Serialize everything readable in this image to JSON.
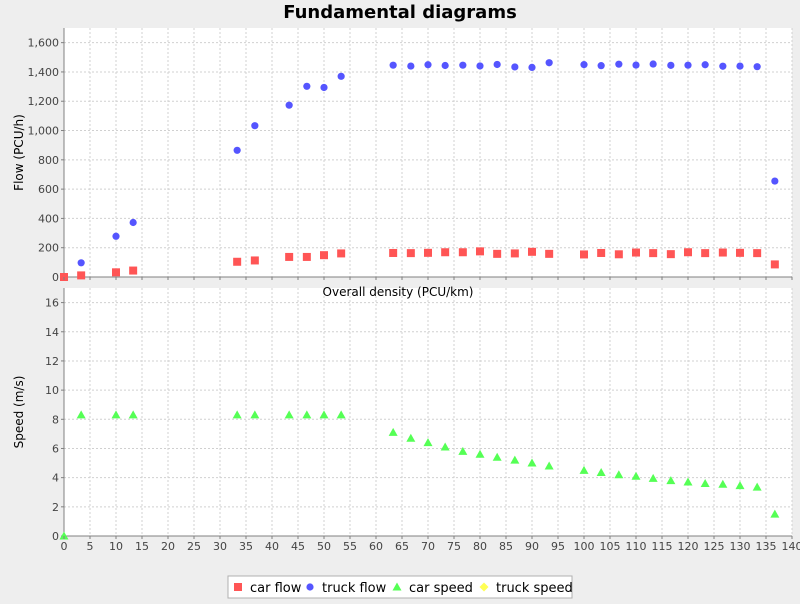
{
  "title": "Fundamental diagrams",
  "chart_data": {
    "type": "scatter",
    "title": "Fundamental diagrams",
    "xlabel": "Overall density (PCU/km)",
    "xlim": [
      0,
      140
    ],
    "xticks": [
      0,
      5,
      10,
      15,
      20,
      25,
      30,
      35,
      40,
      45,
      50,
      55,
      60,
      65,
      70,
      75,
      80,
      85,
      90,
      95,
      100,
      105,
      110,
      115,
      120,
      125,
      130,
      135,
      140
    ],
    "grid": true,
    "legend_position": "bottom",
    "subplots": [
      {
        "name": "flow",
        "ylabel": "Flow (PCU/h)",
        "ylim": [
          0,
          1700
        ],
        "yticks": [
          0,
          200,
          400,
          600,
          800,
          1000,
          1200,
          1400,
          1600
        ],
        "ytick_labels": [
          "0",
          "200",
          "400",
          "600",
          "800",
          "1,000",
          "1,200",
          "1,400",
          "1,600"
        ],
        "series": [
          {
            "name": "car flow",
            "marker": "square",
            "color": "#ff5555",
            "points": [
              [
                0,
                0
              ],
              [
                3.3,
                11
              ],
              [
                10,
                32
              ],
              [
                13.3,
                44
              ],
              [
                33.3,
                104
              ],
              [
                36.7,
                113
              ],
              [
                43.3,
                137
              ],
              [
                46.7,
                137
              ],
              [
                50,
                149
              ],
              [
                53.3,
                161
              ],
              [
                63.3,
                164
              ],
              [
                66.7,
                163
              ],
              [
                70,
                165
              ],
              [
                73.3,
                169
              ],
              [
                76.7,
                169
              ],
              [
                80,
                175
              ],
              [
                83.3,
                158
              ],
              [
                86.7,
                161
              ],
              [
                90,
                172
              ],
              [
                93.3,
                158
              ],
              [
                100,
                154
              ],
              [
                103.3,
                164
              ],
              [
                106.7,
                155
              ],
              [
                110,
                167
              ],
              [
                113.3,
                163
              ],
              [
                116.7,
                156
              ],
              [
                120,
                169
              ],
              [
                123.3,
                163
              ],
              [
                126.7,
                167
              ],
              [
                130,
                165
              ],
              [
                133.3,
                163
              ],
              [
                136.7,
                86
              ]
            ]
          },
          {
            "name": "truck flow",
            "marker": "circle",
            "color": "#5555ff",
            "points": [
              [
                3.3,
                97
              ],
              [
                10,
                278
              ],
              [
                13.3,
                372
              ],
              [
                33.3,
                865
              ],
              [
                36.7,
                1033
              ],
              [
                43.3,
                1173
              ],
              [
                46.7,
                1302
              ],
              [
                50,
                1294
              ],
              [
                53.3,
                1370
              ],
              [
                63.3,
                1446
              ],
              [
                66.7,
                1440
              ],
              [
                70,
                1449
              ],
              [
                73.3,
                1444
              ],
              [
                76.7,
                1446
              ],
              [
                80,
                1441
              ],
              [
                83.3,
                1451
              ],
              [
                86.7,
                1434
              ],
              [
                90,
                1431
              ],
              [
                93.3,
                1463
              ],
              [
                100,
                1450
              ],
              [
                103.3,
                1443
              ],
              [
                106.7,
                1453
              ],
              [
                110,
                1447
              ],
              [
                113.3,
                1454
              ],
              [
                116.7,
                1445
              ],
              [
                120,
                1446
              ],
              [
                123.3,
                1449
              ],
              [
                126.7,
                1439
              ],
              [
                130,
                1440
              ],
              [
                133.3,
                1436
              ],
              [
                136.7,
                655
              ]
            ]
          }
        ]
      },
      {
        "name": "speed",
        "ylabel": "Speed (m/s)",
        "ylim": [
          0,
          17
        ],
        "yticks": [
          0,
          2,
          4,
          6,
          8,
          10,
          12,
          14,
          16
        ],
        "ytick_labels": [
          "0",
          "2",
          "4",
          "6",
          "8",
          "10",
          "12",
          "14",
          "16"
        ],
        "series": [
          {
            "name": "car speed",
            "marker": "triangle",
            "color": "#55ff55",
            "points": [
              [
                0,
                0
              ],
              [
                3.3,
                8.3
              ],
              [
                10,
                8.3
              ],
              [
                13.3,
                8.3
              ],
              [
                33.3,
                8.3
              ],
              [
                36.7,
                8.3
              ],
              [
                43.3,
                8.3
              ],
              [
                46.7,
                8.3
              ],
              [
                50,
                8.3
              ],
              [
                53.3,
                8.3
              ],
              [
                63.3,
                7.1
              ],
              [
                66.7,
                6.7
              ],
              [
                70,
                6.4
              ],
              [
                73.3,
                6.1
              ],
              [
                76.7,
                5.8
              ],
              [
                80,
                5.6
              ],
              [
                83.3,
                5.4
              ],
              [
                86.7,
                5.2
              ],
              [
                90,
                5.0
              ],
              [
                93.3,
                4.8
              ],
              [
                100,
                4.5
              ],
              [
                103.3,
                4.35
              ],
              [
                106.7,
                4.2
              ],
              [
                110,
                4.1
              ],
              [
                113.3,
                3.95
              ],
              [
                116.7,
                3.8
              ],
              [
                120,
                3.7
              ],
              [
                123.3,
                3.6
              ],
              [
                126.7,
                3.55
              ],
              [
                130,
                3.45
              ],
              [
                133.3,
                3.35
              ],
              [
                136.7,
                1.5
              ]
            ]
          },
          {
            "name": "truck speed",
            "marker": "diamond",
            "color": "#ffff55",
            "points": []
          }
        ]
      }
    ],
    "legend": [
      {
        "label": "car flow",
        "marker": "square",
        "color": "#ff5555"
      },
      {
        "label": "truck flow",
        "marker": "circle",
        "color": "#5555ff"
      },
      {
        "label": "car speed",
        "marker": "triangle",
        "color": "#55ff55"
      },
      {
        "label": "truck speed",
        "marker": "diamond",
        "color": "#ffff55"
      }
    ]
  }
}
